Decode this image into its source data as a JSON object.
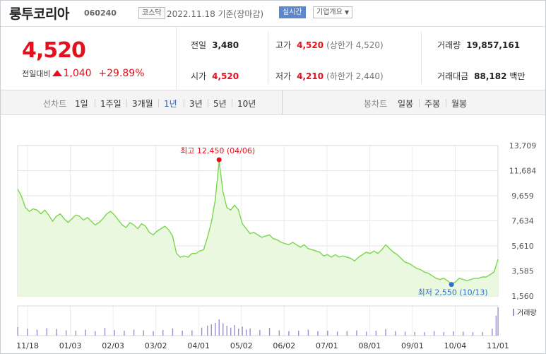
{
  "header": {
    "name": "룽투코리아",
    "code": "060240",
    "market_badge": "코스닥",
    "date_text": "2022.11.18 기준(장마감)",
    "live_label": "실시간",
    "summary_label": "기업개요"
  },
  "price": {
    "current": "4,520",
    "change_label": "전일대비",
    "change": "1,040",
    "change_pct": "+29.89%"
  },
  "stats": {
    "prev_label": "전일",
    "prev": "3,480",
    "high_label": "고가",
    "high": "4,520",
    "high_note": "(상한가 4,520)",
    "volume_label": "거래량",
    "volume": "19,857,161",
    "open_label": "시가",
    "open": "4,520",
    "low_label": "저가",
    "low": "4,210",
    "low_note": "(하한가 2,440)",
    "amount_label": "거래대금",
    "amount": "88,182",
    "amount_unit": "백만"
  },
  "tabs": {
    "line_label": "선차트",
    "line": [
      "1일",
      "1주일",
      "3개월",
      "1년",
      "3년",
      "5년",
      "10년"
    ],
    "active": "1년",
    "candle_label": "봉차트",
    "candle": [
      "일봉",
      "주봉",
      "월봉"
    ]
  },
  "colors": {
    "up": "#e4101d",
    "line": "#7ad64d",
    "area": "#eaf8df",
    "volume": "#9c8fd0",
    "low_marker": "#2f6fd8",
    "active_tab": "#2b5fba"
  },
  "chart_data": {
    "type": "area",
    "yticks": [
      "13,709",
      "11,684",
      "9,659",
      "7,634",
      "5,610",
      "3,585",
      "1,560"
    ],
    "ylim": [
      1560,
      13709
    ],
    "xticks": [
      "11/18",
      "01/03",
      "02/03",
      "03/02",
      "04/01",
      "05/02",
      "06/02",
      "07/01",
      "08/01",
      "09/01",
      "10/04",
      "11/01"
    ],
    "grid": true,
    "high_annotation": "최고 12,450 (04/06)",
    "low_annotation": "최저 2,550 (10/13)",
    "volume_label": "거래량",
    "price_series": [
      [
        0,
        10200
      ],
      [
        2,
        9600
      ],
      [
        4,
        8700
      ],
      [
        6,
        8400
      ],
      [
        8,
        8600
      ],
      [
        10,
        8500
      ],
      [
        12,
        8200
      ],
      [
        14,
        8500
      ],
      [
        16,
        8100
      ],
      [
        18,
        7600
      ],
      [
        20,
        8000
      ],
      [
        22,
        8200
      ],
      [
        24,
        7800
      ],
      [
        26,
        7500
      ],
      [
        28,
        7800
      ],
      [
        30,
        8100
      ],
      [
        32,
        8000
      ],
      [
        34,
        7700
      ],
      [
        36,
        7900
      ],
      [
        38,
        7600
      ],
      [
        40,
        7300
      ],
      [
        42,
        7500
      ],
      [
        44,
        7800
      ],
      [
        46,
        8200
      ],
      [
        48,
        8400
      ],
      [
        50,
        8100
      ],
      [
        52,
        7700
      ],
      [
        54,
        7300
      ],
      [
        56,
        7100
      ],
      [
        58,
        7500
      ],
      [
        60,
        7300
      ],
      [
        62,
        7000
      ],
      [
        64,
        7400
      ],
      [
        66,
        7200
      ],
      [
        68,
        6700
      ],
      [
        70,
        6500
      ],
      [
        72,
        6800
      ],
      [
        74,
        7000
      ],
      [
        76,
        7200
      ],
      [
        78,
        6900
      ],
      [
        80,
        6400
      ],
      [
        82,
        5000
      ],
      [
        84,
        4700
      ],
      [
        86,
        4800
      ],
      [
        88,
        4700
      ],
      [
        90,
        5000
      ],
      [
        92,
        5000
      ],
      [
        94,
        5200
      ],
      [
        96,
        5300
      ],
      [
        98,
        6300
      ],
      [
        100,
        7500
      ],
      [
        102,
        9300
      ],
      [
        104,
        12450
      ],
      [
        106,
        10000
      ],
      [
        108,
        8700
      ],
      [
        110,
        8500
      ],
      [
        112,
        8900
      ],
      [
        114,
        8500
      ],
      [
        116,
        7400
      ],
      [
        118,
        7000
      ],
      [
        120,
        6600
      ],
      [
        122,
        6700
      ],
      [
        124,
        6500
      ],
      [
        126,
        6300
      ],
      [
        128,
        6400
      ],
      [
        130,
        6500
      ],
      [
        132,
        6200
      ],
      [
        134,
        6100
      ],
      [
        136,
        5900
      ],
      [
        138,
        5800
      ],
      [
        140,
        5700
      ],
      [
        142,
        5900
      ],
      [
        144,
        5700
      ],
      [
        146,
        5500
      ],
      [
        148,
        5700
      ],
      [
        150,
        5400
      ],
      [
        152,
        5300
      ],
      [
        154,
        5200
      ],
      [
        156,
        5100
      ],
      [
        158,
        4800
      ],
      [
        160,
        4900
      ],
      [
        162,
        4700
      ],
      [
        164,
        4900
      ],
      [
        166,
        4700
      ],
      [
        168,
        4800
      ],
      [
        170,
        4700
      ],
      [
        172,
        4600
      ],
      [
        174,
        4400
      ],
      [
        176,
        4700
      ],
      [
        178,
        4900
      ],
      [
        180,
        5100
      ],
      [
        182,
        5000
      ],
      [
        184,
        5200
      ],
      [
        186,
        5000
      ],
      [
        188,
        5300
      ],
      [
        190,
        5700
      ],
      [
        192,
        5400
      ],
      [
        194,
        5100
      ],
      [
        196,
        4900
      ],
      [
        198,
        4600
      ],
      [
        200,
        4300
      ],
      [
        202,
        4200
      ],
      [
        204,
        4000
      ],
      [
        206,
        3800
      ],
      [
        208,
        3700
      ],
      [
        210,
        3500
      ],
      [
        212,
        3400
      ],
      [
        214,
        3200
      ],
      [
        216,
        3000
      ],
      [
        218,
        2900
      ],
      [
        220,
        3000
      ],
      [
        222,
        2800
      ],
      [
        224,
        2550
      ],
      [
        226,
        2700
      ],
      [
        228,
        3000
      ],
      [
        230,
        2900
      ],
      [
        232,
        2800
      ],
      [
        234,
        2900
      ],
      [
        236,
        3000
      ],
      [
        238,
        3000
      ],
      [
        240,
        3100
      ],
      [
        242,
        3100
      ],
      [
        244,
        3300
      ],
      [
        246,
        3500
      ],
      [
        248,
        4520
      ]
    ],
    "volume_series": [
      [
        0,
        1800000
      ],
      [
        5,
        1200000
      ],
      [
        10,
        900000
      ],
      [
        15,
        1400000
      ],
      [
        20,
        1100000
      ],
      [
        25,
        700000
      ],
      [
        30,
        600000
      ],
      [
        35,
        900000
      ],
      [
        40,
        500000
      ],
      [
        45,
        1500000
      ],
      [
        50,
        800000
      ],
      [
        55,
        600000
      ],
      [
        60,
        900000
      ],
      [
        65,
        700000
      ],
      [
        70,
        500000
      ],
      [
        75,
        800000
      ],
      [
        80,
        1300000
      ],
      [
        85,
        600000
      ],
      [
        90,
        700000
      ],
      [
        95,
        1600000
      ],
      [
        98,
        2500000
      ],
      [
        100,
        3200000
      ],
      [
        102,
        4100000
      ],
      [
        104,
        6500000
      ],
      [
        106,
        3800000
      ],
      [
        108,
        2400000
      ],
      [
        110,
        1600000
      ],
      [
        112,
        2800000
      ],
      [
        114,
        1200000
      ],
      [
        116,
        2000000
      ],
      [
        118,
        900000
      ],
      [
        120,
        1300000
      ],
      [
        125,
        800000
      ],
      [
        130,
        1500000
      ],
      [
        135,
        700000
      ],
      [
        140,
        500000
      ],
      [
        145,
        600000
      ],
      [
        150,
        900000
      ],
      [
        155,
        500000
      ],
      [
        160,
        600000
      ],
      [
        165,
        400000
      ],
      [
        170,
        500000
      ],
      [
        175,
        700000
      ],
      [
        180,
        400000
      ],
      [
        185,
        600000
      ],
      [
        190,
        1100000
      ],
      [
        195,
        500000
      ],
      [
        200,
        400000
      ],
      [
        205,
        350000
      ],
      [
        210,
        300000
      ],
      [
        215,
        500000
      ],
      [
        220,
        300000
      ],
      [
        225,
        450000
      ],
      [
        230,
        400000
      ],
      [
        235,
        300000
      ],
      [
        240,
        350000
      ],
      [
        245,
        1200000
      ],
      [
        247,
        9800000
      ],
      [
        248,
        19857161
      ]
    ]
  }
}
